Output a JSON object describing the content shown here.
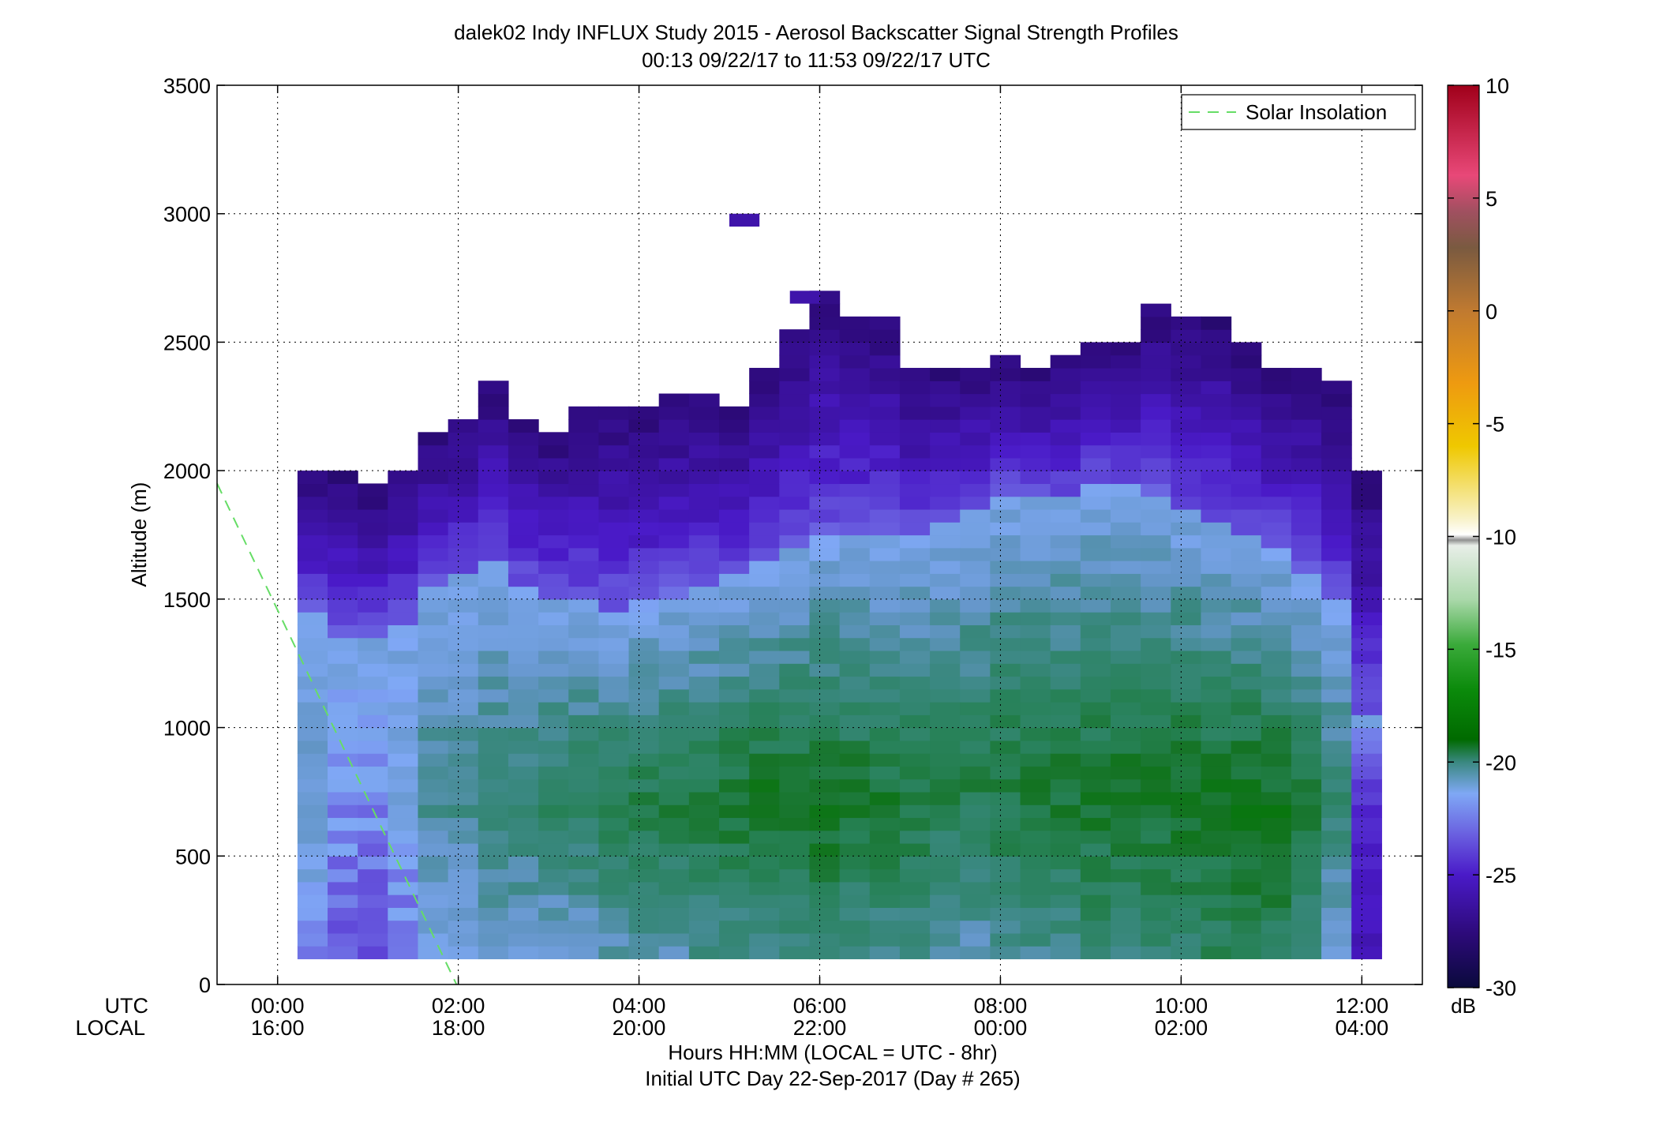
{
  "chart_data": {
    "type": "heatmap",
    "title": "dalek02 Indy INFLUX Study 2015 - Aerosol Backscatter Signal Strength Profiles",
    "subtitle": "00:13 09/22/17 to 11:53 09/22/17  UTC",
    "ylabel": "Altitude (m)",
    "xlabel": "Hours HH:MM  (LOCAL = UTC - 8hr)",
    "xlabel2": "Initial UTC Day 22-Sep-2017 (Day # 265)",
    "x_row_labels": [
      "UTC",
      "LOCAL"
    ],
    "x_unit": "hours UTC",
    "xlim": [
      -0.67,
      12.67
    ],
    "ylim": [
      0,
      3500
    ],
    "xticks": [
      {
        "value": 0,
        "utc": "00:00",
        "local": "16:00"
      },
      {
        "value": 2,
        "utc": "02:00",
        "local": "18:00"
      },
      {
        "value": 4,
        "utc": "04:00",
        "local": "20:00"
      },
      {
        "value": 6,
        "utc": "06:00",
        "local": "22:00"
      },
      {
        "value": 8,
        "utc": "08:00",
        "local": "00:00"
      },
      {
        "value": 10,
        "utc": "10:00",
        "local": "02:00"
      },
      {
        "value": 12,
        "utc": "12:00",
        "local": "04:00"
      }
    ],
    "yticks": [
      0,
      500,
      1000,
      1500,
      2000,
      2500,
      3000,
      3500
    ],
    "grid": true,
    "legend": {
      "position": "top-right",
      "entries": [
        {
          "label": "Solar Insolation",
          "color": "#66dd66",
          "style": "dashed"
        }
      ]
    },
    "solar_insolation": {
      "x": [
        -0.67,
        1.98
      ],
      "y": [
        1950,
        0
      ]
    },
    "colorbar": {
      "label": "dB",
      "min": -30,
      "max": 10,
      "ticks": [
        10,
        5,
        0,
        -5,
        -10,
        -15,
        -20,
        -25,
        -30
      ]
    },
    "profile_time_step_hr": 0.3333,
    "profile_start_hr": 0.22,
    "profiles": [
      {
        "top": 2000,
        "sfc": -22.5,
        "peak": -21.5,
        "pz": 700,
        "tl": 1400
      },
      {
        "top": 2000,
        "sfc": -23.5,
        "peak": -22.5,
        "pz": 700,
        "tl": 1330
      },
      {
        "top": 1950,
        "sfc": -23.5,
        "peak": -22.8,
        "pz": 700,
        "tl": 1330
      },
      {
        "top": 2000,
        "sfc": -23.0,
        "peak": -22.0,
        "pz": 700,
        "tl": 1380
      },
      {
        "top": 2150,
        "sfc": -22.0,
        "peak": -20.5,
        "pz": 700,
        "tl": 1500
      },
      {
        "top": 2200,
        "sfc": -22.0,
        "peak": -20.5,
        "pz": 700,
        "tl": 1550
      },
      {
        "top": 2350,
        "sfc": -21.5,
        "peak": -20.0,
        "pz": 700,
        "tl": 1600
      },
      {
        "top": 2200,
        "sfc": -21.5,
        "peak": -19.8,
        "pz": 720,
        "tl": 1500
      },
      {
        "top": 2150,
        "sfc": -21.5,
        "peak": -19.5,
        "pz": 720,
        "tl": 1470
      },
      {
        "top": 2250,
        "sfc": -21.5,
        "peak": -19.3,
        "pz": 700,
        "tl": 1450
      },
      {
        "top": 2250,
        "sfc": -21.0,
        "peak": -19.0,
        "pz": 680,
        "tl": 1420
      },
      {
        "top": 2250,
        "sfc": -21.0,
        "peak": -19.0,
        "pz": 680,
        "tl": 1450
      },
      {
        "top": 2300,
        "sfc": -21.0,
        "peak": -18.8,
        "pz": 700,
        "tl": 1480
      },
      {
        "top": 2300,
        "sfc": -20.5,
        "peak": -18.8,
        "pz": 700,
        "tl": 1500
      },
      {
        "top": 2250,
        "sfc": -20.5,
        "peak": -18.6,
        "pz": 720,
        "tl": 1550
      },
      {
        "top": 2400,
        "sfc": -20.5,
        "peak": -18.5,
        "pz": 720,
        "tl": 1600
      },
      {
        "top": 2550,
        "sfc": -20.5,
        "peak": -18.4,
        "pz": 720,
        "tl": 1650
      },
      {
        "top": 2700,
        "sfc": -20.0,
        "peak": -18.3,
        "pz": 700,
        "tl": 1700
      },
      {
        "top": 2600,
        "sfc": -20.5,
        "peak": -18.5,
        "pz": 700,
        "tl": 1700
      },
      {
        "top": 2600,
        "sfc": -20.5,
        "peak": -18.6,
        "pz": 700,
        "tl": 1700
      },
      {
        "top": 2400,
        "sfc": -20.5,
        "peak": -18.8,
        "pz": 720,
        "tl": 1700
      },
      {
        "top": 2400,
        "sfc": -21.0,
        "peak": -19.0,
        "pz": 740,
        "tl": 1750
      },
      {
        "top": 2400,
        "sfc": -21.0,
        "peak": -19.0,
        "pz": 760,
        "tl": 1800
      },
      {
        "top": 2450,
        "sfc": -20.5,
        "peak": -18.8,
        "pz": 760,
        "tl": 1850
      },
      {
        "top": 2400,
        "sfc": -20.5,
        "peak": -18.6,
        "pz": 760,
        "tl": 1850
      },
      {
        "top": 2450,
        "sfc": -20.5,
        "peak": -18.6,
        "pz": 760,
        "tl": 1850
      },
      {
        "top": 2500,
        "sfc": -20.0,
        "peak": -18.5,
        "pz": 760,
        "tl": 1900
      },
      {
        "top": 2500,
        "sfc": -20.0,
        "peak": -18.5,
        "pz": 760,
        "tl": 1900
      },
      {
        "top": 2650,
        "sfc": -20.0,
        "peak": -18.4,
        "pz": 740,
        "tl": 1850
      },
      {
        "top": 2600,
        "sfc": -20.0,
        "peak": -18.3,
        "pz": 740,
        "tl": 1800
      },
      {
        "top": 2600,
        "sfc": -19.5,
        "peak": -18.3,
        "pz": 720,
        "tl": 1750
      },
      {
        "top": 2500,
        "sfc": -19.5,
        "peak": -18.2,
        "pz": 720,
        "tl": 1700
      },
      {
        "top": 2400,
        "sfc": -19.5,
        "peak": -18.3,
        "pz": 700,
        "tl": 1650
      },
      {
        "top": 2400,
        "sfc": -20.0,
        "peak": -18.8,
        "pz": 700,
        "tl": 1550
      },
      {
        "top": 2350,
        "sfc": -21.5,
        "peak": -20.0,
        "pz": 700,
        "tl": 1450
      },
      {
        "top": 2000,
        "sfc": -25.5,
        "peak": -24.5,
        "pz": 700,
        "tl": 1000
      }
    ],
    "isolated_cells": [
      {
        "x": 5.0,
        "y": 2950,
        "value": -26.0
      },
      {
        "x": 5.67,
        "y": 2650,
        "value": -26.0
      }
    ]
  }
}
